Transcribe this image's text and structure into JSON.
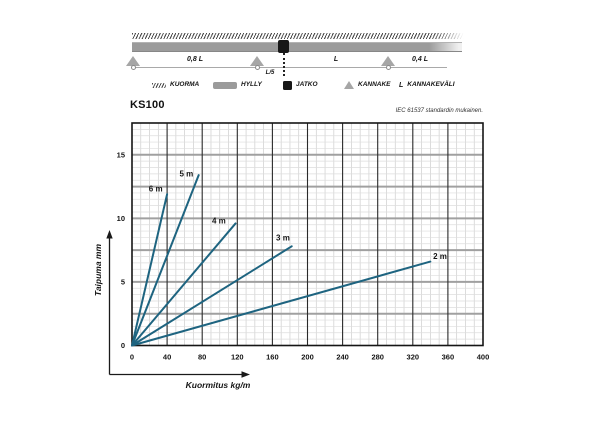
{
  "header": {
    "title": "KS100",
    "standard_note": "IEC 61537 standardin mukainen."
  },
  "schematic": {
    "dimension_labels": {
      "left_span": "0,8 L",
      "joint_offset": "L/5",
      "mid_span": "L",
      "right_span": "0,4 L"
    },
    "legend": [
      {
        "id": "load",
        "label": "KUORMA"
      },
      {
        "id": "shelf",
        "label": "HYLLY"
      },
      {
        "id": "joint",
        "label": "JATKO"
      },
      {
        "id": "support",
        "label": "KANNAKE"
      },
      {
        "id": "span",
        "symbol": "L",
        "label": "KANNAKEVÄLI"
      }
    ]
  },
  "chart_data": {
    "type": "line",
    "title": "KS100",
    "subtitle": "IEC 61537 standardin mukainen.",
    "xlabel": "Kuormitus kg/m",
    "ylabel": "Taipuma mm",
    "xlim": [
      0,
      400
    ],
    "ylim": [
      0,
      17.5
    ],
    "x_ticks": [
      0,
      40,
      80,
      120,
      160,
      200,
      240,
      280,
      320,
      360,
      400
    ],
    "y_ticks": [
      0,
      5,
      10,
      15
    ],
    "x_minor_step": 10,
    "x_major_step": 40,
    "y_minor_step": 0.5,
    "y_major_step": 2.5,
    "grid": true,
    "legend_position": "inline-labels",
    "line_color": "#1e6480",
    "series": [
      {
        "name": "6 m",
        "points": [
          [
            0,
            0
          ],
          [
            40,
            11.9
          ]
        ],
        "label_pos": [
          27,
          12.1
        ]
      },
      {
        "name": "5 m",
        "points": [
          [
            0,
            0
          ],
          [
            76,
            13.4
          ]
        ],
        "label_pos": [
          62,
          13.3
        ]
      },
      {
        "name": "4 m",
        "points": [
          [
            0,
            0
          ],
          [
            118,
            9.6
          ]
        ],
        "label_pos": [
          99,
          9.6
        ]
      },
      {
        "name": "3 m",
        "points": [
          [
            0,
            0
          ],
          [
            182,
            7.8
          ]
        ],
        "label_pos": [
          172,
          8.25
        ]
      },
      {
        "name": "2 m",
        "points": [
          [
            0,
            0
          ],
          [
            340,
            6.6
          ]
        ],
        "label_pos": [
          351,
          6.8
        ]
      }
    ]
  }
}
